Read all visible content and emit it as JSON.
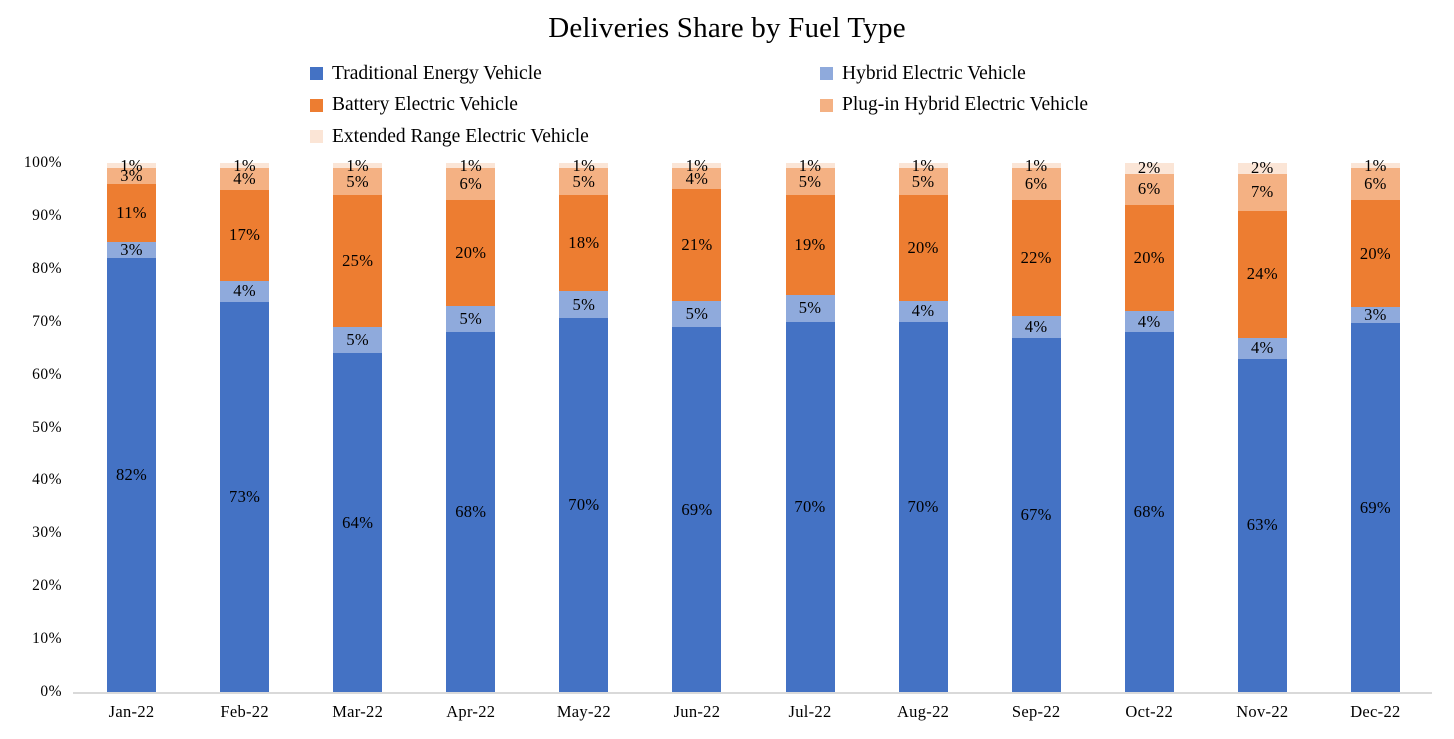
{
  "chart_data": {
    "type": "bar",
    "variant": "stacked-percent-column",
    "title": "Deliveries Share by Fuel Type",
    "legend_position": "top",
    "grid": false,
    "background_color": "#FFFFFF",
    "axis_line_color": "#D9D9D9",
    "data_label_color": "#000000",
    "categories": [
      "Jan-22",
      "Feb-22",
      "Mar-22",
      "Apr-22",
      "May-22",
      "Jun-22",
      "Jul-22",
      "Aug-22",
      "Sep-22",
      "Oct-22",
      "Nov-22",
      "Dec-22"
    ],
    "series": [
      {
        "name": "Traditional Energy Vehicle",
        "color": "#4472C4",
        "values": [
          82,
          73,
          64,
          68,
          70,
          69,
          70,
          70,
          67,
          68,
          63,
          69
        ]
      },
      {
        "name": "Hybrid Electric Vehicle",
        "color": "#8FAADC",
        "values": [
          3,
          4,
          5,
          5,
          5,
          5,
          5,
          4,
          4,
          4,
          4,
          3
        ]
      },
      {
        "name": "Battery Electric Vehicle",
        "color": "#ED7D31",
        "values": [
          11,
          17,
          25,
          20,
          18,
          21,
          19,
          20,
          22,
          20,
          24,
          20
        ]
      },
      {
        "name": "Plug-in Hybrid Electric Vehicle",
        "color": "#F4B183",
        "values": [
          3,
          4,
          5,
          6,
          5,
          4,
          5,
          5,
          6,
          6,
          7,
          6
        ]
      },
      {
        "name": "Extended Range Electric Vehicle",
        "color": "#FBE5D6",
        "values": [
          1,
          1,
          1,
          1,
          1,
          1,
          1,
          1,
          1,
          2,
          2,
          1
        ]
      }
    ],
    "data_label_format": "{value}%",
    "y_axis": {
      "min": 0,
      "max": 100,
      "tick_labels": [
        "0%",
        "10%",
        "20%",
        "30%",
        "40%",
        "50%",
        "60%",
        "70%",
        "80%",
        "90%",
        "100%"
      ]
    }
  }
}
